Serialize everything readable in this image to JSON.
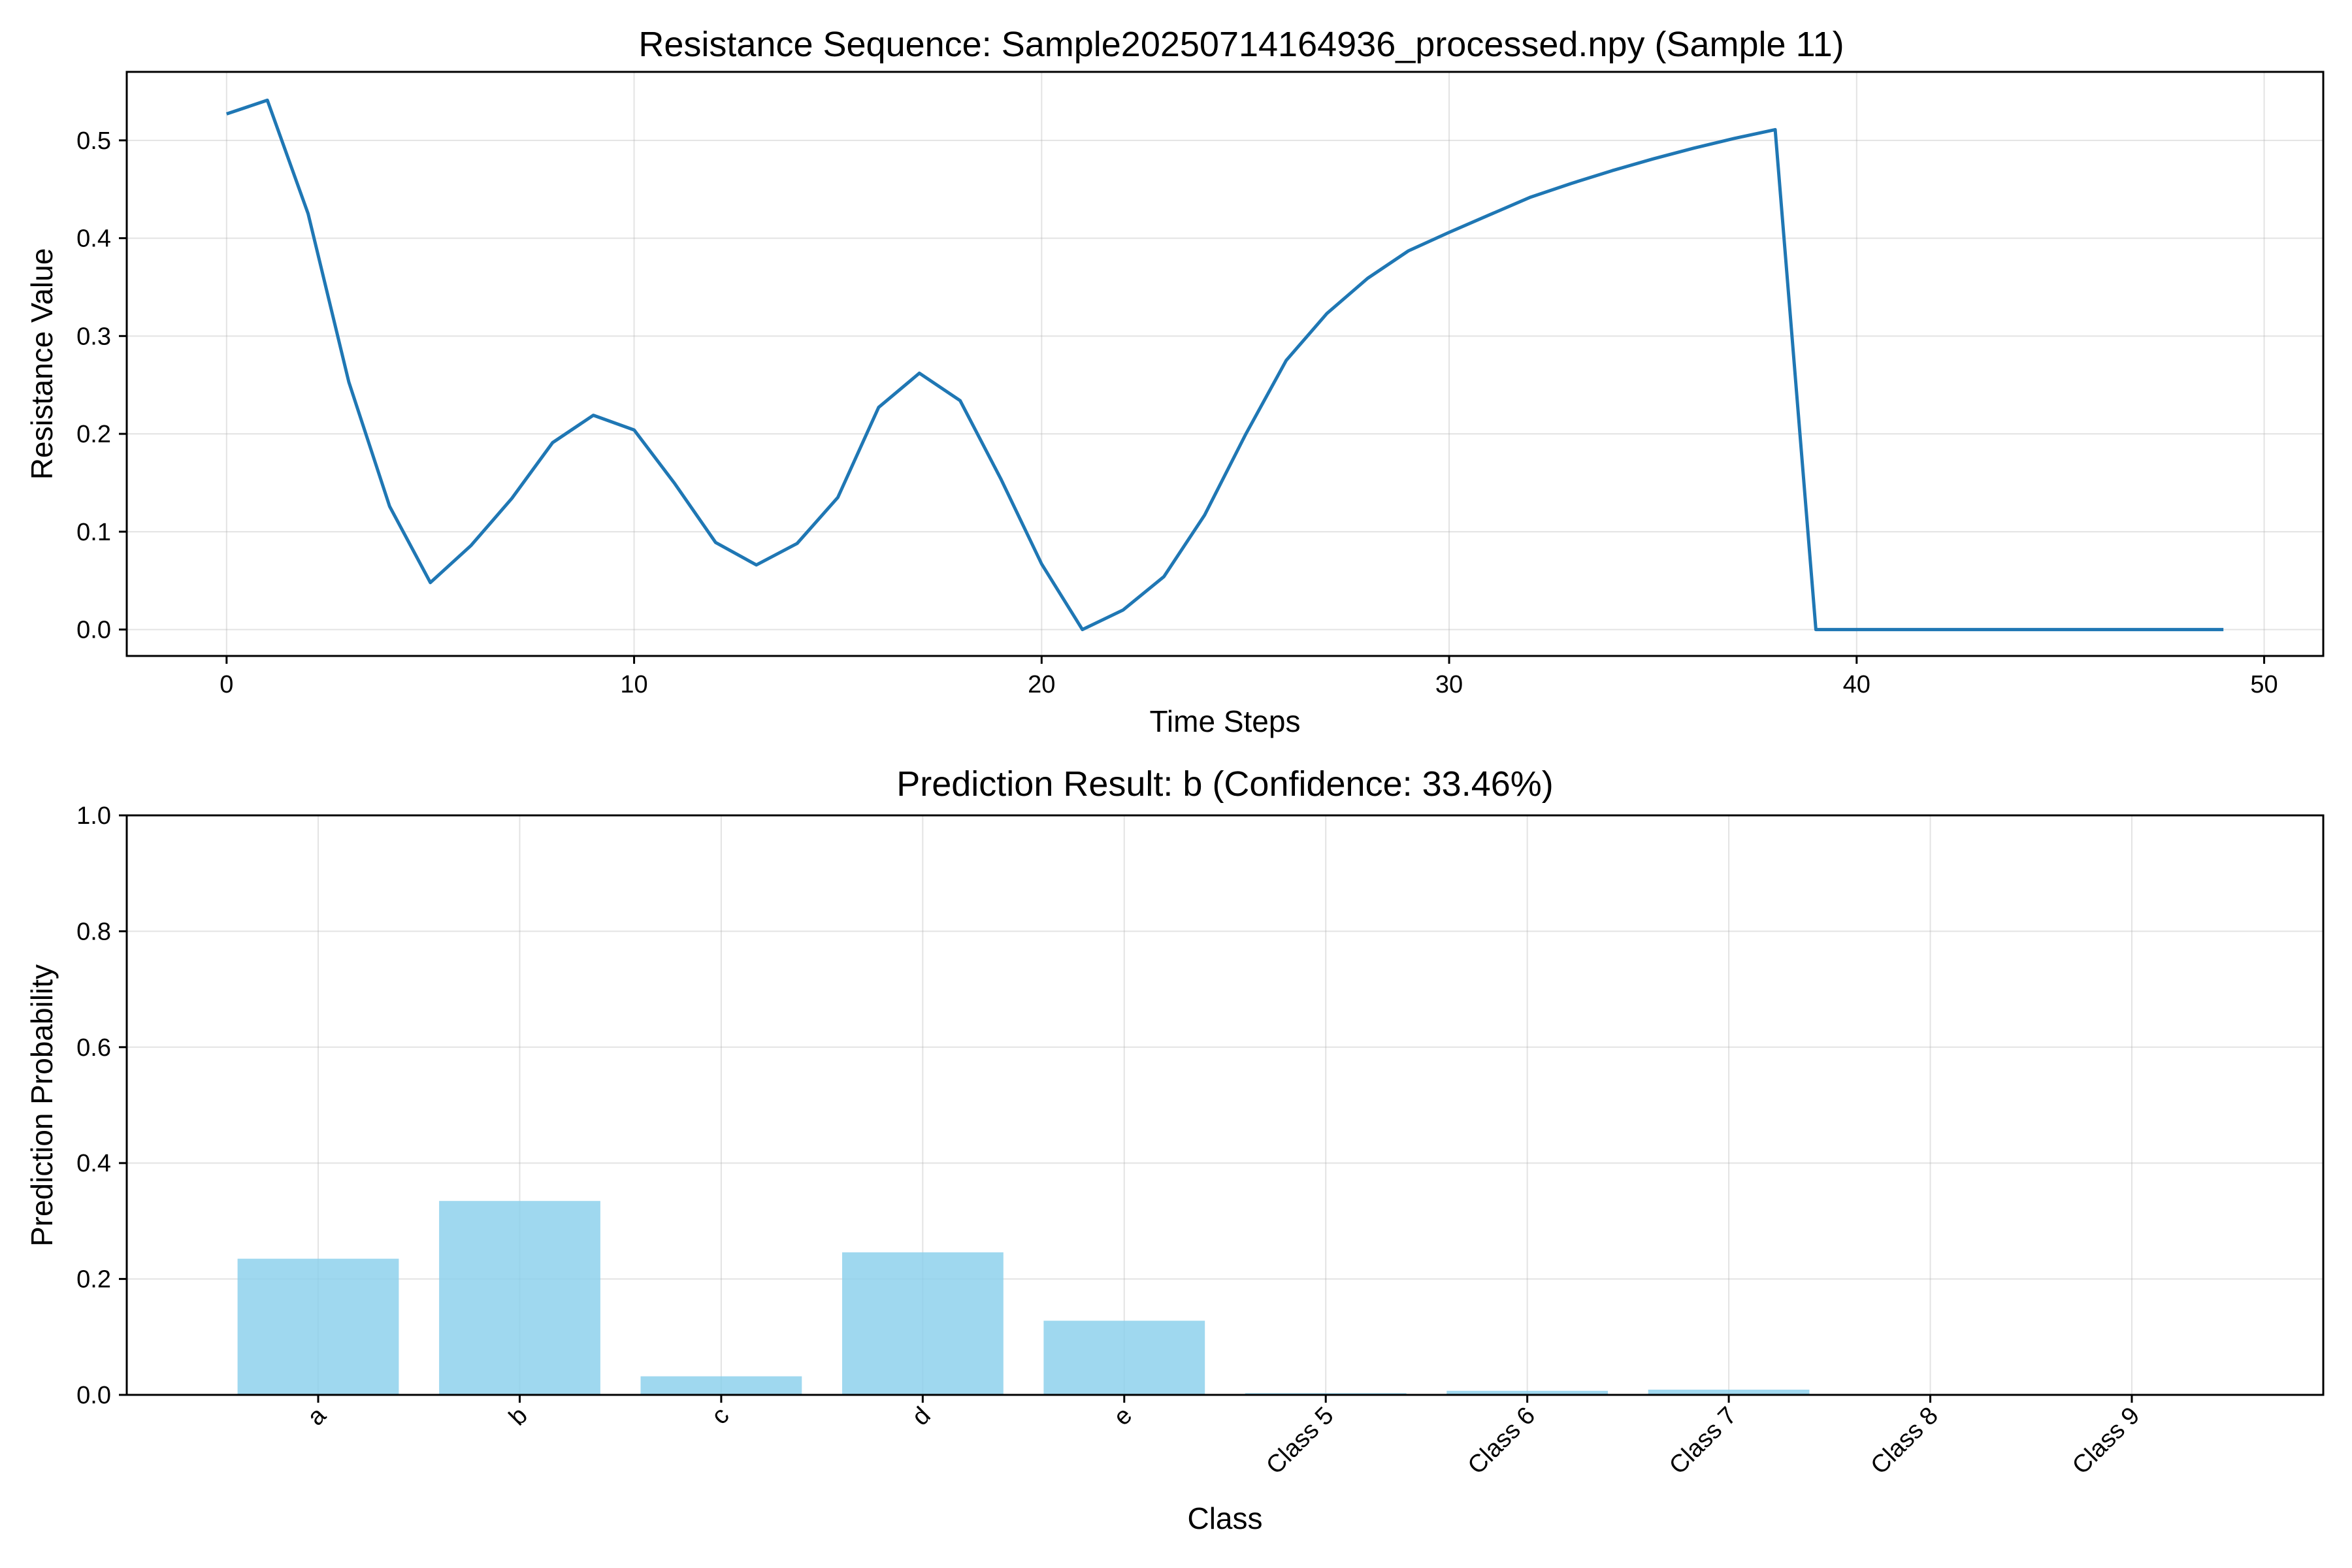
{
  "chart_data": [
    {
      "type": "line",
      "title": "Resistance Sequence: Sample20250714164936_processed.npy (Sample 11)",
      "xlabel": "Time Steps",
      "ylabel": "Resistance Value",
      "xlim": [
        -2.45,
        51.45
      ],
      "ylim": [
        -0.027,
        0.57
      ],
      "xticks": [
        0,
        10,
        20,
        30,
        40,
        50
      ],
      "yticks": [
        0.0,
        0.1,
        0.2,
        0.3,
        0.4,
        0.5
      ],
      "ytick_labels": [
        "0.0",
        "0.1",
        "0.2",
        "0.3",
        "0.4",
        "0.5"
      ],
      "grid": true,
      "color": "#1f77b4",
      "x": [
        0,
        1,
        2,
        3,
        4,
        5,
        6,
        7,
        8,
        9,
        10,
        11,
        12,
        13,
        14,
        15,
        16,
        17,
        18,
        19,
        20,
        21,
        22,
        23,
        24,
        25,
        26,
        27,
        28,
        29,
        30,
        31,
        32,
        33,
        34,
        35,
        36,
        37,
        38,
        39,
        40,
        41,
        42,
        43,
        44,
        45,
        46,
        47,
        48,
        49
      ],
      "y": [
        0.527,
        0.541,
        0.425,
        0.253,
        0.126,
        0.048,
        0.086,
        0.134,
        0.191,
        0.219,
        0.204,
        0.149,
        0.089,
        0.066,
        0.088,
        0.135,
        0.227,
        0.262,
        0.234,
        0.154,
        0.067,
        0.0,
        0.02,
        0.054,
        0.117,
        0.199,
        0.275,
        0.323,
        0.359,
        0.387,
        0.406,
        0.424,
        0.442,
        0.456,
        0.469,
        0.481,
        0.492,
        0.502,
        0.511,
        0.0,
        0.0,
        0.0,
        0.0,
        0.0,
        0.0,
        0.0,
        0.0,
        0.0,
        0.0,
        0.0
      ]
    },
    {
      "type": "bar",
      "title": "Prediction Result: b (Confidence: 33.46%)",
      "xlabel": "Class",
      "ylabel": "Prediction Probability",
      "ylim": [
        0,
        1.0
      ],
      "yticks": [
        0.0,
        0.2,
        0.4,
        0.6,
        0.8,
        1.0
      ],
      "ytick_labels": [
        "0.0",
        "0.2",
        "0.4",
        "0.6",
        "0.8",
        "1.0"
      ],
      "grid": true,
      "color": "#87ceeb",
      "categories": [
        "a",
        "b",
        "c",
        "d",
        "e",
        "Class 5",
        "Class 6",
        "Class 7",
        "Class 8",
        "Class 9"
      ],
      "values": [
        0.235,
        0.3346,
        0.032,
        0.246,
        0.128,
        0.003,
        0.007,
        0.009,
        0.001,
        0.001
      ]
    }
  ]
}
